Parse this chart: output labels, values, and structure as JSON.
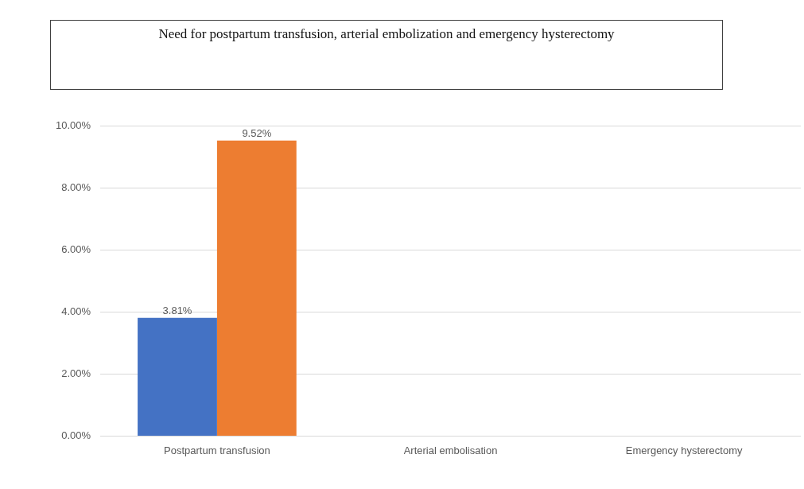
{
  "chart_data": {
    "type": "bar",
    "title": "Need for postpartum transfusion, arterial embolization  and emergency hysterectomy",
    "categories": [
      "Postpartum transfusion",
      "Arterial embolisation",
      "Emergency hysterectomy"
    ],
    "series": [
      {
        "color": "#4472c4",
        "values": [
          3.81,
          0,
          0
        ],
        "value_labels": [
          "3.81%",
          null,
          null
        ]
      },
      {
        "color": "#ed7d31",
        "values": [
          9.52,
          0,
          0
        ],
        "value_labels": [
          "9.52%",
          null,
          null
        ]
      }
    ],
    "ylim": [
      0,
      10
    ],
    "yticks": [
      {
        "value": 0,
        "label": "0.00%"
      },
      {
        "value": 2,
        "label": "2.00%"
      },
      {
        "value": 4,
        "label": "4.00%"
      },
      {
        "value": 6,
        "label": "6.00%"
      },
      {
        "value": 8,
        "label": "8.00%"
      },
      {
        "value": 10,
        "label": "10.00%"
      }
    ],
    "grid": "y",
    "legend": false
  }
}
